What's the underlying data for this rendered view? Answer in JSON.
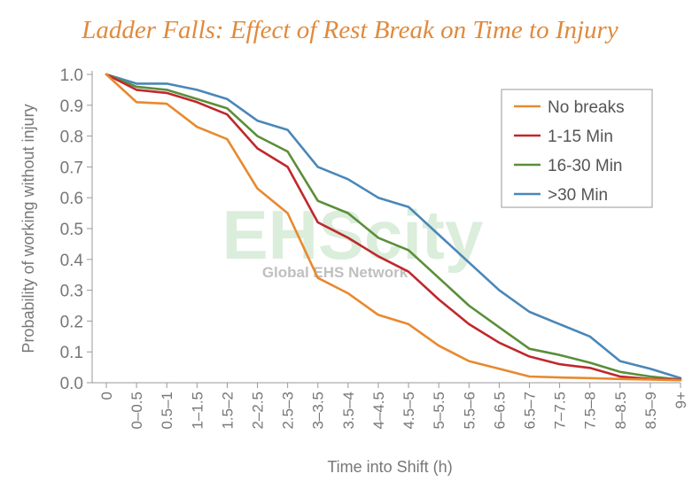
{
  "chart_data": {
    "type": "line",
    "title": "Ladder Falls: Effect of Rest Break on Time to Injury",
    "xlabel": "Time into Shift (h)",
    "ylabel": "Probability of working without injury",
    "ylim": [
      0,
      1.0
    ],
    "yticks": [
      "0.0",
      "0.1",
      "0.2",
      "0.3",
      "0.4",
      "0.5",
      "0.6",
      "0.7",
      "0.8",
      "0.9",
      "1.0"
    ],
    "categories": [
      "0",
      "0–0.5",
      "0.5–1",
      "1–1.5",
      "1.5–2",
      "2–2.5",
      "2.5–3",
      "3–3.5",
      "3.5–4",
      "4–4.5",
      "4.5–5",
      "5–5.5",
      "5.5–6",
      "6–6.5",
      "6.5–7",
      "7–7.5",
      "7.5–8",
      "8–8.5",
      "8.5–9",
      "9+"
    ],
    "legend_position": "top-right",
    "grid": false,
    "series": [
      {
        "name": "No breaks",
        "color": "#e8892f",
        "values": [
          1.0,
          0.91,
          0.905,
          0.83,
          0.79,
          0.63,
          0.55,
          0.34,
          0.29,
          0.22,
          0.19,
          0.12,
          0.07,
          0.045,
          0.02,
          0.017,
          0.015,
          0.012,
          0.01,
          0.008
        ]
      },
      {
        "name": "1-15 Min",
        "color": "#c0282d",
        "values": [
          1.0,
          0.95,
          0.94,
          0.91,
          0.87,
          0.76,
          0.7,
          0.52,
          0.47,
          0.41,
          0.36,
          0.27,
          0.19,
          0.13,
          0.085,
          0.06,
          0.048,
          0.02,
          0.012,
          0.01
        ]
      },
      {
        "name": "16-30 Min",
        "color": "#5a8f3a",
        "values": [
          1.0,
          0.96,
          0.95,
          0.92,
          0.89,
          0.8,
          0.75,
          0.59,
          0.55,
          0.47,
          0.43,
          0.34,
          0.25,
          0.18,
          0.11,
          0.09,
          0.065,
          0.035,
          0.02,
          0.01
        ]
      },
      {
        "name": ">30 Min",
        "color": "#4a87b8",
        "values": [
          1.0,
          0.97,
          0.97,
          0.95,
          0.92,
          0.85,
          0.82,
          0.7,
          0.66,
          0.6,
          0.57,
          0.48,
          0.39,
          0.3,
          0.23,
          0.19,
          0.15,
          0.07,
          0.045,
          0.015
        ]
      }
    ]
  },
  "watermark": {
    "main": "EHScity",
    "sub": "Global EHS Network"
  }
}
